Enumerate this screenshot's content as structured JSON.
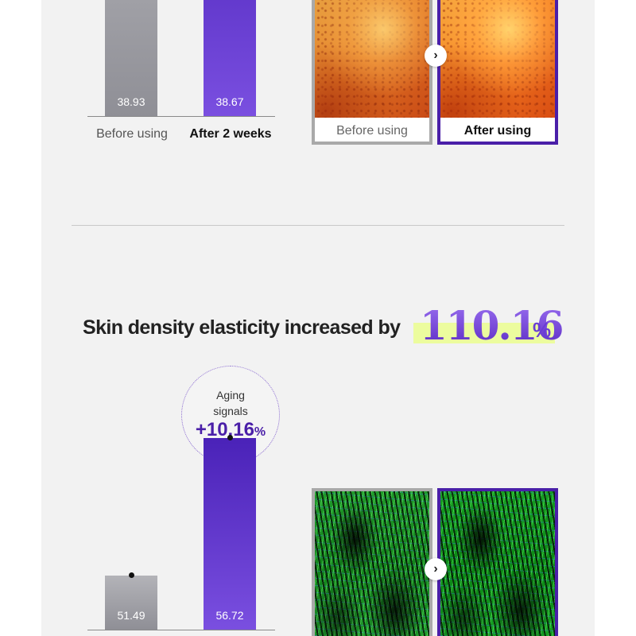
{
  "chart_data": [
    {
      "type": "bar",
      "categories": [
        "Before using",
        "After 2 weeks"
      ],
      "values": [
        38.93,
        38.67
      ],
      "value_labels": [
        "38.93",
        "38.67"
      ],
      "colors": [
        "#9a9aa0",
        "#5a2fd0"
      ]
    },
    {
      "type": "bar",
      "categories": [
        "",
        ""
      ],
      "values": [
        51.49,
        56.72
      ],
      "value_labels": [
        "51.49",
        "56.72"
      ],
      "colors": [
        "#9a9aa0",
        "#5a2fd0"
      ],
      "annotation": {
        "label_line1": "Aging",
        "label_line2": "signals",
        "value": "+10.16",
        "unit": "%"
      }
    }
  ],
  "comparison1": {
    "before_caption": "Before using",
    "after_caption": "After using"
  },
  "headline": {
    "text": "Skin density elasticity increased by",
    "number": "110.16",
    "unit": "%"
  },
  "icons": {
    "arrow": "chevron-right-icon"
  },
  "colors": {
    "accent": "#4a1fa8",
    "highlight": "#ecfc9e",
    "gray_bar": "#9a9aa0"
  }
}
